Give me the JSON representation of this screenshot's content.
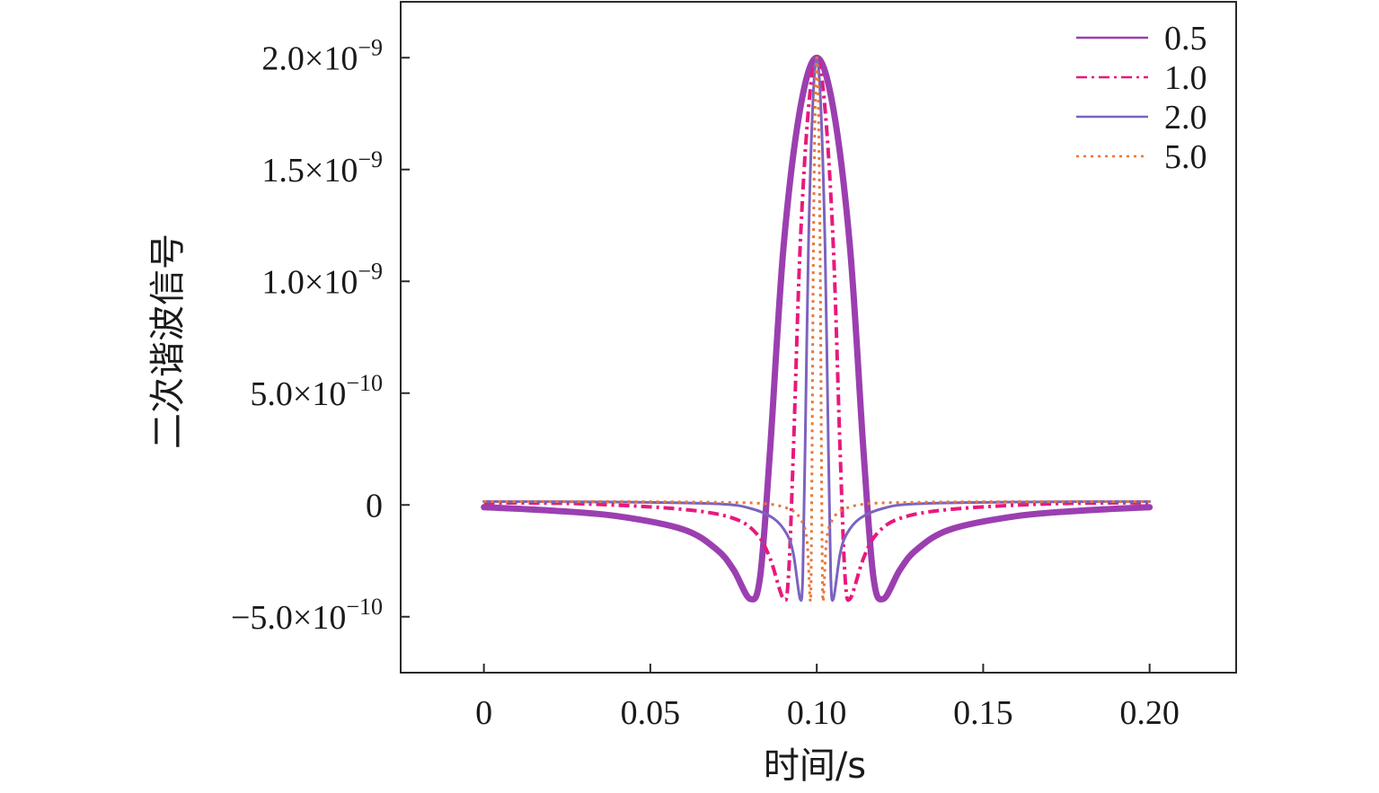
{
  "chart_data": {
    "type": "line",
    "xlabel": "时间/s",
    "ylabel": "二次谐波信号",
    "xlim": [
      -0.025,
      0.226
    ],
    "ylim": [
      -7.5e-10,
      2.25e-09
    ],
    "grid": false,
    "legend_position": "top-right",
    "x_ticks": [
      {
        "value": 0,
        "label": "0"
      },
      {
        "value": 0.05,
        "label": "0.05"
      },
      {
        "value": 0.1,
        "label": "0.10"
      },
      {
        "value": 0.15,
        "label": "0.15"
      },
      {
        "value": 0.2,
        "label": "0.20"
      }
    ],
    "y_ticks": [
      {
        "value": 2e-09,
        "mantissa": "2.0×10",
        "exp": "−9"
      },
      {
        "value": 1.5e-09,
        "mantissa": "1.5×10",
        "exp": "−9"
      },
      {
        "value": 1e-09,
        "mantissa": "1.0×10",
        "exp": "−9"
      },
      {
        "value": 5e-10,
        "mantissa": "5.0×10",
        "exp": "−10"
      },
      {
        "value": 0,
        "mantissa": "0",
        "exp": ""
      },
      {
        "value": -5e-10,
        "mantissa": "−5.0×10",
        "exp": "−10"
      }
    ],
    "series": [
      {
        "name": "0.5",
        "color": "#9b3fb0",
        "dash": "solid",
        "width": 7,
        "legend_width": 2.5,
        "x": [
          0,
          0.02,
          0.04,
          0.06,
          0.07,
          0.075,
          0.08,
          0.083,
          0.086,
          0.09,
          0.095,
          0.1,
          0.105,
          0.11,
          0.114,
          0.117,
          0.12,
          0.125,
          0.13,
          0.14,
          0.16,
          0.18,
          0.2
        ],
        "y": [
          -1e-11,
          -2.5e-11,
          -5e-11,
          -1.1e-10,
          -2e-10,
          -2.9e-10,
          -4.2e-10,
          -3.2e-10,
          2.5e-10,
          1.15e-09,
          1.77e-09,
          2e-09,
          1.77e-09,
          1.15e-09,
          2.5e-10,
          -3.2e-10,
          -4.2e-10,
          -2.9e-10,
          -2e-10,
          -1.1e-10,
          -5e-11,
          -2.5e-11,
          -1e-11
        ]
      },
      {
        "name": "1.0",
        "color": "#e8197c",
        "dash": "12,5,3,5",
        "width": 4,
        "legend_width": 2.5,
        "x": [
          0,
          0.03,
          0.06,
          0.075,
          0.082,
          0.086,
          0.09,
          0.0915,
          0.093,
          0.095,
          0.0975,
          0.1,
          0.1025,
          0.105,
          0.107,
          0.1085,
          0.11,
          0.114,
          0.118,
          0.125,
          0.14,
          0.17,
          0.2
        ],
        "y": [
          1e-11,
          5e-12,
          -2e-11,
          -6e-11,
          -1.3e-10,
          -2.4e-10,
          -4.2e-10,
          -3.2e-10,
          2.5e-10,
          1.15e-09,
          1.77e-09,
          2e-09,
          1.77e-09,
          1.15e-09,
          2.5e-10,
          -3.2e-10,
          -4.2e-10,
          -2.4e-10,
          -1.3e-10,
          -6e-11,
          -2e-11,
          5e-12,
          1e-11
        ]
      },
      {
        "name": "2.0",
        "color": "#7b63bf",
        "dash": "solid",
        "width": 3,
        "legend_width": 2.5,
        "x": [
          0,
          0.04,
          0.07,
          0.08,
          0.087,
          0.091,
          0.093,
          0.095,
          0.0958,
          0.0965,
          0.0975,
          0.09875,
          0.1,
          0.10125,
          0.1025,
          0.1035,
          0.1042,
          0.105,
          0.107,
          0.109,
          0.113,
          0.12,
          0.13,
          0.16,
          0.2
        ],
        "y": [
          1.5e-11,
          1.3e-11,
          5e-12,
          -1.5e-11,
          -6e-11,
          -1.3e-10,
          -2.2e-10,
          -4.2e-10,
          -3.2e-10,
          2.5e-10,
          1.15e-09,
          1.77e-09,
          2e-09,
          1.77e-09,
          1.15e-09,
          2.5e-10,
          -3.2e-10,
          -4.2e-10,
          -2.2e-10,
          -1.3e-10,
          -6e-11,
          -1.5e-11,
          5e-12,
          1.3e-11,
          1.5e-11
        ]
      },
      {
        "name": "5.0",
        "color": "#e87838",
        "dash": "3,5",
        "width": 3,
        "legend_width": 2.5,
        "x": [
          0,
          0.04,
          0.07,
          0.085,
          0.092,
          0.095,
          0.097,
          0.098,
          0.0983,
          0.0986,
          0.099,
          0.0995,
          0.1,
          0.1005,
          0.101,
          0.1014,
          0.1017,
          0.102,
          0.103,
          0.105,
          0.108,
          0.115,
          0.13,
          0.16,
          0.2
        ],
        "y": [
          1.5e-11,
          1.5e-11,
          1.2e-11,
          5e-12,
          -2e-11,
          -6e-11,
          -1.5e-10,
          -4.2e-10,
          -3.2e-10,
          2.5e-10,
          1.15e-09,
          1.77e-09,
          2e-09,
          1.77e-09,
          1.15e-09,
          2.5e-10,
          -3.2e-10,
          -4.2e-10,
          -1.5e-10,
          -6e-11,
          -2e-11,
          5e-12,
          1.2e-11,
          1.5e-11,
          1.5e-11
        ]
      }
    ]
  }
}
